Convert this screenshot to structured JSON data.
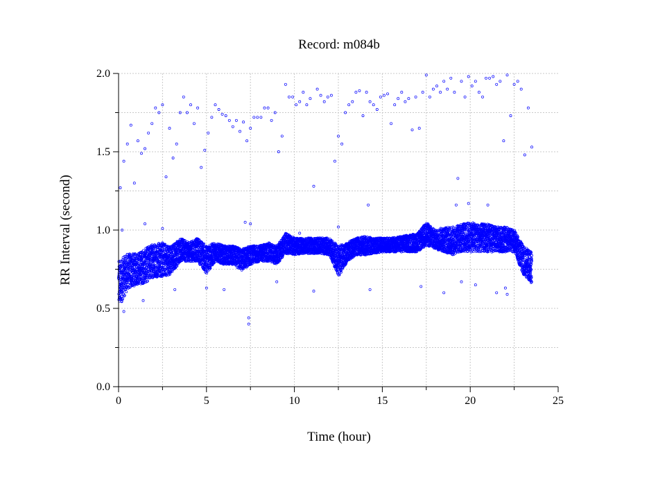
{
  "chart_data": {
    "type": "scatter",
    "title": "Record:  m084b",
    "xlabel": "Time (hour)",
    "ylabel": "RR Interval (second)",
    "xlim": [
      0,
      25
    ],
    "ylim": [
      0,
      2.0
    ],
    "xticks": [
      "0",
      "5",
      "10",
      "15",
      "20",
      "25"
    ],
    "yticks": [
      "0.0",
      "0.5",
      "1.0",
      "1.5",
      "2.0"
    ],
    "grid": true,
    "marker_color": "#0000ff",
    "band_series_estimated": [
      {
        "t": 0.0,
        "lo": 0.5,
        "hi": 0.8
      },
      {
        "t": 0.5,
        "lo": 0.62,
        "hi": 0.85
      },
      {
        "t": 1.0,
        "lo": 0.65,
        "hi": 0.85
      },
      {
        "t": 1.5,
        "lo": 0.66,
        "hi": 0.88
      },
      {
        "t": 2.0,
        "lo": 0.7,
        "hi": 0.92
      },
      {
        "t": 2.5,
        "lo": 0.7,
        "hi": 0.92
      },
      {
        "t": 3.0,
        "lo": 0.72,
        "hi": 0.9
      },
      {
        "t": 3.5,
        "lo": 0.8,
        "hi": 0.95
      },
      {
        "t": 4.0,
        "lo": 0.8,
        "hi": 0.92
      },
      {
        "t": 4.5,
        "lo": 0.8,
        "hi": 0.95
      },
      {
        "t": 5.0,
        "lo": 0.72,
        "hi": 0.9
      },
      {
        "t": 5.5,
        "lo": 0.8,
        "hi": 0.92
      },
      {
        "t": 6.0,
        "lo": 0.78,
        "hi": 0.9
      },
      {
        "t": 6.5,
        "lo": 0.78,
        "hi": 0.9
      },
      {
        "t": 7.0,
        "lo": 0.74,
        "hi": 0.88
      },
      {
        "t": 7.5,
        "lo": 0.78,
        "hi": 0.9
      },
      {
        "t": 8.0,
        "lo": 0.8,
        "hi": 0.9
      },
      {
        "t": 8.5,
        "lo": 0.8,
        "hi": 0.92
      },
      {
        "t": 9.0,
        "lo": 0.78,
        "hi": 0.9
      },
      {
        "t": 9.5,
        "lo": 0.85,
        "hi": 0.98
      },
      {
        "t": 10.0,
        "lo": 0.84,
        "hi": 0.95
      },
      {
        "t": 10.5,
        "lo": 0.85,
        "hi": 0.95
      },
      {
        "t": 11.0,
        "lo": 0.85,
        "hi": 0.95
      },
      {
        "t": 11.5,
        "lo": 0.85,
        "hi": 0.95
      },
      {
        "t": 12.0,
        "lo": 0.84,
        "hi": 0.95
      },
      {
        "t": 12.5,
        "lo": 0.7,
        "hi": 0.9
      },
      {
        "t": 13.0,
        "lo": 0.8,
        "hi": 0.92
      },
      {
        "t": 13.5,
        "lo": 0.84,
        "hi": 0.95
      },
      {
        "t": 14.0,
        "lo": 0.84,
        "hi": 0.96
      },
      {
        "t": 14.5,
        "lo": 0.85,
        "hi": 0.95
      },
      {
        "t": 15.0,
        "lo": 0.86,
        "hi": 0.95
      },
      {
        "t": 15.5,
        "lo": 0.86,
        "hi": 0.95
      },
      {
        "t": 16.0,
        "lo": 0.86,
        "hi": 0.96
      },
      {
        "t": 16.5,
        "lo": 0.86,
        "hi": 0.97
      },
      {
        "t": 17.0,
        "lo": 0.86,
        "hi": 0.98
      },
      {
        "t": 17.5,
        "lo": 0.9,
        "hi": 1.05
      },
      {
        "t": 18.0,
        "lo": 0.88,
        "hi": 1.0
      },
      {
        "t": 18.5,
        "lo": 0.86,
        "hi": 1.02
      },
      {
        "t": 19.0,
        "lo": 0.84,
        "hi": 1.02
      },
      {
        "t": 19.5,
        "lo": 0.86,
        "hi": 1.04
      },
      {
        "t": 20.0,
        "lo": 0.86,
        "hi": 1.05
      },
      {
        "t": 20.5,
        "lo": 0.86,
        "hi": 1.04
      },
      {
        "t": 21.0,
        "lo": 0.86,
        "hi": 1.04
      },
      {
        "t": 21.5,
        "lo": 0.86,
        "hi": 1.02
      },
      {
        "t": 22.0,
        "lo": 0.86,
        "hi": 1.02
      },
      {
        "t": 22.5,
        "lo": 0.86,
        "hi": 1.0
      },
      {
        "t": 23.0,
        "lo": 0.72,
        "hi": 0.9
      },
      {
        "t": 23.5,
        "lo": 0.66,
        "hi": 0.86
      }
    ],
    "upper_points_estimated": [
      [
        0.1,
        1.27
      ],
      [
        0.3,
        1.44
      ],
      [
        0.5,
        1.55
      ],
      [
        0.7,
        1.67
      ],
      [
        0.9,
        1.3
      ],
      [
        1.1,
        1.57
      ],
      [
        1.3,
        1.49
      ],
      [
        1.5,
        1.52
      ],
      [
        1.7,
        1.62
      ],
      [
        1.9,
        1.68
      ],
      [
        2.1,
        1.78
      ],
      [
        2.3,
        1.75
      ],
      [
        2.5,
        1.8
      ],
      [
        2.7,
        1.34
      ],
      [
        2.9,
        1.65
      ],
      [
        3.1,
        1.46
      ],
      [
        3.3,
        1.55
      ],
      [
        3.5,
        1.75
      ],
      [
        3.7,
        1.85
      ],
      [
        3.9,
        1.75
      ],
      [
        4.1,
        1.8
      ],
      [
        4.3,
        1.68
      ],
      [
        4.5,
        1.78
      ],
      [
        4.7,
        1.4
      ],
      [
        4.9,
        1.51
      ],
      [
        5.1,
        1.62
      ],
      [
        5.3,
        1.72
      ],
      [
        5.5,
        1.8
      ],
      [
        5.7,
        1.77
      ],
      [
        5.9,
        1.74
      ],
      [
        6.1,
        1.73
      ],
      [
        6.3,
        1.7
      ],
      [
        6.5,
        1.66
      ],
      [
        6.7,
        1.7
      ],
      [
        6.9,
        1.63
      ],
      [
        7.1,
        1.69
      ],
      [
        7.3,
        1.57
      ],
      [
        7.5,
        1.65
      ],
      [
        7.7,
        1.72
      ],
      [
        7.9,
        1.72
      ],
      [
        8.1,
        1.72
      ],
      [
        8.3,
        1.78
      ],
      [
        8.5,
        1.78
      ],
      [
        8.7,
        1.7
      ],
      [
        8.9,
        1.75
      ],
      [
        9.1,
        1.5
      ],
      [
        9.3,
        1.6
      ],
      [
        9.5,
        1.93
      ],
      [
        9.7,
        1.85
      ],
      [
        9.9,
        1.85
      ],
      [
        10.1,
        1.8
      ],
      [
        10.3,
        1.82
      ],
      [
        10.5,
        1.88
      ],
      [
        10.7,
        1.8
      ],
      [
        10.9,
        1.84
      ],
      [
        11.1,
        1.28
      ],
      [
        11.3,
        1.9
      ],
      [
        11.5,
        1.86
      ],
      [
        11.7,
        1.82
      ],
      [
        11.9,
        1.85
      ],
      [
        12.1,
        1.86
      ],
      [
        12.3,
        1.44
      ],
      [
        12.5,
        1.6
      ],
      [
        12.7,
        1.55
      ],
      [
        12.9,
        1.75
      ],
      [
        13.1,
        1.8
      ],
      [
        13.3,
        1.82
      ],
      [
        13.5,
        1.88
      ],
      [
        13.7,
        1.89
      ],
      [
        13.9,
        1.73
      ],
      [
        14.1,
        1.88
      ],
      [
        14.3,
        1.82
      ],
      [
        14.5,
        1.8
      ],
      [
        14.7,
        1.77
      ],
      [
        14.9,
        1.85
      ],
      [
        15.1,
        1.86
      ],
      [
        15.3,
        1.87
      ],
      [
        15.5,
        1.68
      ],
      [
        15.7,
        1.8
      ],
      [
        15.9,
        1.84
      ],
      [
        16.1,
        1.88
      ],
      [
        16.3,
        1.82
      ],
      [
        16.5,
        1.84
      ],
      [
        16.7,
        1.64
      ],
      [
        16.9,
        1.85
      ],
      [
        17.1,
        1.65
      ],
      [
        17.3,
        1.88
      ],
      [
        17.5,
        1.99
      ],
      [
        17.7,
        1.85
      ],
      [
        17.9,
        1.9
      ],
      [
        18.1,
        1.92
      ],
      [
        18.3,
        1.88
      ],
      [
        18.5,
        1.95
      ],
      [
        18.7,
        1.9
      ],
      [
        18.9,
        1.97
      ],
      [
        19.1,
        1.88
      ],
      [
        19.3,
        1.33
      ],
      [
        19.5,
        1.95
      ],
      [
        19.7,
        1.85
      ],
      [
        19.9,
        1.98
      ],
      [
        20.1,
        1.92
      ],
      [
        20.3,
        1.95
      ],
      [
        20.5,
        1.88
      ],
      [
        20.7,
        1.85
      ],
      [
        20.9,
        1.97
      ],
      [
        21.1,
        1.97
      ],
      [
        21.3,
        1.98
      ],
      [
        21.5,
        1.93
      ],
      [
        21.7,
        1.95
      ],
      [
        21.9,
        1.57
      ],
      [
        22.1,
        1.99
      ],
      [
        22.3,
        1.73
      ],
      [
        22.5,
        1.93
      ],
      [
        22.7,
        1.95
      ],
      [
        22.9,
        1.9
      ],
      [
        23.1,
        1.48
      ],
      [
        23.3,
        1.78
      ],
      [
        23.5,
        1.53
      ]
    ],
    "outlier_points_estimated": [
      [
        0.2,
        1.0
      ],
      [
        1.5,
        1.04
      ],
      [
        2.5,
        1.01
      ],
      [
        5.0,
        0.63
      ],
      [
        6.0,
        0.62
      ],
      [
        7.2,
        1.05
      ],
      [
        7.4,
        0.4
      ],
      [
        7.4,
        0.44
      ],
      [
        7.5,
        1.04
      ],
      [
        9.0,
        0.67
      ],
      [
        10.3,
        0.98
      ],
      [
        11.1,
        0.61
      ],
      [
        12.5,
        1.02
      ],
      [
        14.2,
        1.16
      ],
      [
        14.3,
        0.62
      ],
      [
        17.2,
        0.64
      ],
      [
        18.5,
        0.6
      ],
      [
        19.2,
        1.16
      ],
      [
        19.5,
        0.67
      ],
      [
        19.9,
        1.17
      ],
      [
        20.3,
        0.65
      ],
      [
        21.0,
        1.16
      ],
      [
        21.5,
        0.6
      ],
      [
        22.1,
        0.59
      ],
      [
        22.0,
        0.63
      ],
      [
        0.3,
        0.48
      ],
      [
        1.4,
        0.55
      ],
      [
        3.2,
        0.62
      ]
    ]
  }
}
